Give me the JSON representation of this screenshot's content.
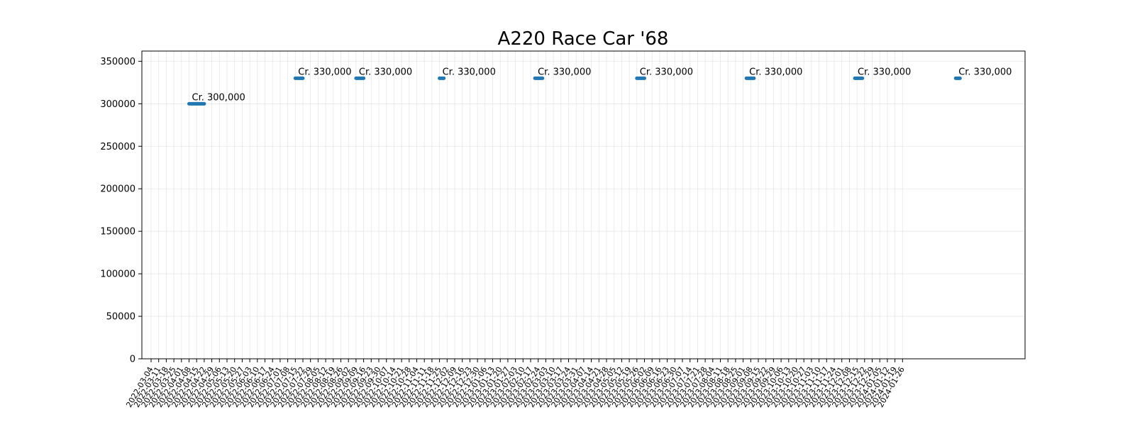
{
  "chart_data": {
    "type": "line",
    "title": "A220 Race Car '68",
    "xlabel": "",
    "ylabel": "",
    "ylim": [
      0,
      362000
    ],
    "y_ticks": [
      0,
      50000,
      100000,
      150000,
      200000,
      250000,
      300000,
      350000
    ],
    "grid": true,
    "x_ticks": [
      "2022-03-04",
      "2022-03-11",
      "2022-03-18",
      "2022-03-25",
      "2022-04-01",
      "2022-04-08",
      "2022-04-15",
      "2022-04-22",
      "2022-04-29",
      "2022-05-06",
      "2022-05-13",
      "2022-05-20",
      "2022-05-27",
      "2022-06-03",
      "2022-06-10",
      "2022-06-17",
      "2022-06-24",
      "2022-07-01",
      "2022-07-08",
      "2022-07-15",
      "2022-07-22",
      "2022-07-29",
      "2022-08-05",
      "2022-08-12",
      "2022-08-19",
      "2022-08-26",
      "2022-09-02",
      "2022-09-09",
      "2022-09-16",
      "2022-09-23",
      "2022-09-30",
      "2022-10-07",
      "2022-10-14",
      "2022-10-21",
      "2022-10-28",
      "2022-11-04",
      "2022-11-11",
      "2022-11-18",
      "2022-11-25",
      "2022-12-02",
      "2022-12-09",
      "2022-12-16",
      "2022-12-23",
      "2022-12-30",
      "2023-01-06",
      "2023-01-13",
      "2023-01-20",
      "2023-01-27",
      "2023-02-03",
      "2023-02-10",
      "2023-02-17",
      "2023-02-24",
      "2023-03-03",
      "2023-03-10",
      "2023-03-17",
      "2023-03-24",
      "2023-03-31",
      "2023-04-07",
      "2023-04-14",
      "2023-04-21",
      "2023-04-28",
      "2023-05-05",
      "2023-05-12",
      "2023-05-19",
      "2023-05-26",
      "2023-06-02",
      "2023-06-09",
      "2023-06-16",
      "2023-06-23",
      "2023-06-30",
      "2023-07-07",
      "2023-07-14",
      "2023-07-21",
      "2023-07-28",
      "2023-08-04",
      "2023-08-11",
      "2023-08-18",
      "2023-08-25",
      "2023-09-01",
      "2023-09-08",
      "2023-09-15",
      "2023-09-22",
      "2023-09-29",
      "2023-10-06",
      "2023-10-13",
      "2023-10-20",
      "2023-10-27",
      "2023-11-03",
      "2023-11-10",
      "2023-11-17",
      "2023-11-24",
      "2023-12-01",
      "2023-12-08",
      "2023-12-15",
      "2023-12-22",
      "2023-12-29",
      "2024-01-05",
      "2024-01-12",
      "2024-01-19",
      "2024-01-26"
    ],
    "series": [
      {
        "color": "#1f77b4",
        "segments": [
          {
            "start": "2022-04-08",
            "end": "2022-04-22",
            "value": 300000,
            "label": "Cr. 300,000"
          },
          {
            "start": "2022-07-15",
            "end": "2022-07-22",
            "value": 330000,
            "label": "Cr. 330,000"
          },
          {
            "start": "2022-09-09",
            "end": "2022-09-16",
            "value": 330000,
            "label": "Cr. 330,000"
          },
          {
            "start": "2022-11-25",
            "end": "2022-11-29",
            "value": 330000,
            "label": "Cr. 330,000"
          },
          {
            "start": "2023-02-21",
            "end": "2023-02-28",
            "value": 330000,
            "label": "Cr. 330,000"
          },
          {
            "start": "2023-05-26",
            "end": "2023-06-02",
            "value": 330000,
            "label": "Cr. 330,000"
          },
          {
            "start": "2023-09-04",
            "end": "2023-09-11",
            "value": 330000,
            "label": "Cr. 330,000"
          },
          {
            "start": "2023-12-13",
            "end": "2023-12-20",
            "value": 330000,
            "label": "Cr. 330,000"
          },
          {
            "start": "2024-03-15",
            "end": "2024-03-19",
            "value": 330000,
            "label": "Cr. 330,000"
          }
        ]
      }
    ]
  }
}
